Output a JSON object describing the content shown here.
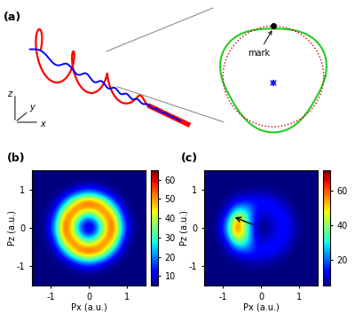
{
  "diagram": {
    "label": "(a)",
    "axis_names": [
      "x",
      "y",
      "z"
    ],
    "annotation": "mark"
  },
  "chart_data": [
    {
      "type": "heatmap",
      "label": "(b)",
      "x_label": "Px (a.u.)",
      "y_label": "Pz (a.u.)",
      "xlim": [
        -1.5,
        1.5
      ],
      "ylim": [
        -1.5,
        1.5
      ],
      "xticks": [
        -1,
        0,
        1
      ],
      "yticks": [
        -1,
        0,
        1
      ],
      "color": "jet",
      "colorbar_range": [
        5,
        65
      ],
      "colorbar_ticks": [
        10,
        20,
        30,
        40,
        50,
        60
      ],
      "cells": [
        [
          5,
          5,
          5,
          5,
          5,
          5,
          5,
          5,
          5,
          5,
          5,
          5
        ],
        [
          5,
          5,
          5,
          5,
          5,
          6,
          6,
          5,
          5,
          5,
          5,
          5
        ],
        [
          5,
          5,
          5,
          7,
          13,
          22,
          22,
          13,
          7,
          5,
          5,
          5
        ],
        [
          5,
          5,
          7,
          22,
          49,
          62,
          62,
          49,
          22,
          7,
          5,
          5
        ],
        [
          5,
          5,
          13,
          49,
          58,
          35,
          35,
          58,
          49,
          13,
          5,
          5
        ],
        [
          5,
          6,
          22,
          62,
          35,
          9,
          9,
          35,
          62,
          22,
          6,
          5
        ],
        [
          5,
          6,
          22,
          62,
          35,
          9,
          9,
          35,
          62,
          22,
          6,
          5
        ],
        [
          5,
          5,
          13,
          49,
          58,
          35,
          35,
          58,
          49,
          13,
          5,
          5
        ],
        [
          5,
          5,
          7,
          22,
          49,
          62,
          62,
          49,
          22,
          7,
          5,
          5
        ],
        [
          5,
          5,
          5,
          7,
          13,
          22,
          22,
          13,
          7,
          5,
          5,
          5
        ],
        [
          5,
          5,
          5,
          5,
          5,
          6,
          6,
          5,
          5,
          5,
          5,
          5
        ],
        [
          5,
          5,
          5,
          5,
          5,
          5,
          5,
          5,
          5,
          5,
          5,
          5
        ]
      ]
    },
    {
      "type": "heatmap",
      "label": "(c)",
      "x_label": "Px (a.u.)",
      "y_label": "Pz (a.u.)",
      "xlim": [
        -1.5,
        1.5
      ],
      "ylim": [
        -1.5,
        1.5
      ],
      "xticks": [
        -1,
        0,
        1
      ],
      "yticks": [
        -1,
        0,
        1
      ],
      "color": "jet",
      "colorbar_range": [
        5,
        72
      ],
      "colorbar_ticks": [
        20,
        40,
        60
      ],
      "cells": [
        [
          5,
          5,
          5,
          5,
          5,
          5,
          5,
          5,
          5,
          5,
          5,
          5
        ],
        [
          5,
          5,
          5,
          5,
          5,
          5,
          5,
          5,
          5,
          5,
          5,
          5
        ],
        [
          5,
          5,
          5,
          6,
          7,
          8,
          8,
          6,
          5,
          5,
          5,
          5
        ],
        [
          5,
          5,
          7,
          14,
          18,
          15,
          15,
          13,
          8,
          5,
          5,
          5
        ],
        [
          5,
          5,
          12,
          40,
          32,
          11,
          10,
          14,
          13,
          6,
          5,
          5
        ],
        [
          5,
          6,
          24,
          67,
          35,
          7,
          6,
          10,
          15,
          8,
          5,
          5
        ],
        [
          5,
          6,
          24,
          67,
          35,
          7,
          6,
          10,
          15,
          8,
          5,
          5
        ],
        [
          5,
          5,
          12,
          40,
          32,
          11,
          10,
          14,
          13,
          6,
          5,
          5
        ],
        [
          5,
          5,
          7,
          14,
          18,
          15,
          15,
          13,
          8,
          5,
          5,
          5
        ],
        [
          5,
          5,
          5,
          6,
          7,
          8,
          8,
          6,
          5,
          5,
          5,
          5
        ],
        [
          5,
          5,
          5,
          5,
          5,
          5,
          5,
          5,
          5,
          5,
          5,
          5
        ],
        [
          5,
          5,
          5,
          5,
          5,
          5,
          5,
          5,
          5,
          5,
          5,
          5
        ]
      ]
    }
  ]
}
